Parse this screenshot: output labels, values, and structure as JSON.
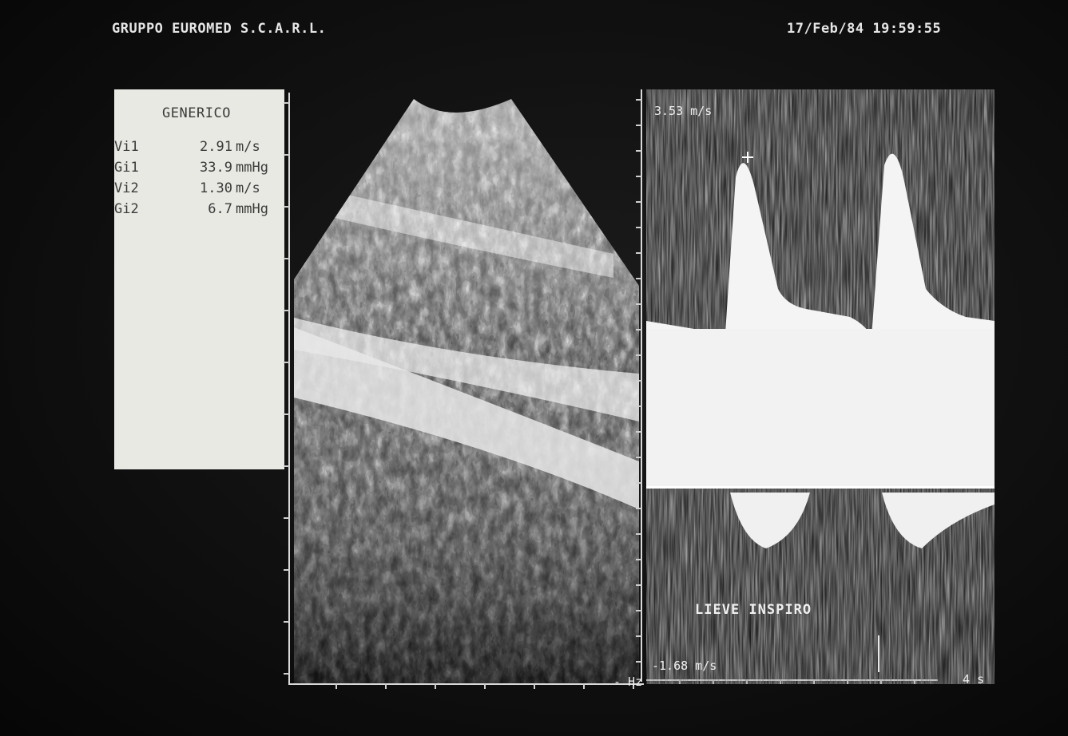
{
  "header": {
    "institution": "GRUPPO EUROMED S.C.A.R.L.",
    "datetime": "17/Feb/84 19:59:55"
  },
  "measurements": {
    "title": "GENERICO",
    "rows": [
      {
        "label": "Vi1",
        "value": "2.91",
        "unit": "m/s"
      },
      {
        "label": "Gi1",
        "value": "33.9",
        "unit": "mmHg"
      },
      {
        "label": "Vi2",
        "value": "1.30",
        "unit": "m/s"
      },
      {
        "label": "Gi2",
        "value": "6.7",
        "unit": "mmHg"
      }
    ]
  },
  "doppler": {
    "vmax_label": "3.53 m/s",
    "vmin_label": "-1.68 m/s",
    "annotation": "LIEVE INSPIRO",
    "sweep_label": "4 s",
    "hz_label": "- Hz"
  },
  "colors": {
    "background": "#050505",
    "panel": "#e9e9e4",
    "text": "#e6e6e6"
  }
}
